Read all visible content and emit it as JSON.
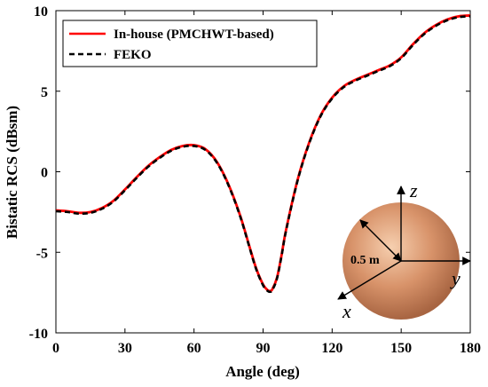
{
  "chart_data": {
    "type": "line",
    "title": "",
    "xlabel": "Angle (deg)",
    "ylabel": "Bistatic RCS (dBsm)",
    "xlim": [
      0,
      180
    ],
    "ylim": [
      -10,
      10
    ],
    "xticks": [
      0,
      30,
      60,
      90,
      120,
      150,
      180
    ],
    "yticks": [
      -10,
      -5,
      0,
      5,
      10
    ],
    "xtick_labels": [
      "0",
      "30",
      "60",
      "90",
      "120",
      "150",
      "180"
    ],
    "ytick_labels": [
      "-10",
      "-5",
      "0",
      "5",
      "10"
    ],
    "grid": false,
    "legend_position": "top-left",
    "series": [
      {
        "name": "In-house (PMCHWT-based)",
        "color": "#ff0000",
        "style": "solid",
        "x": [
          0,
          5,
          10,
          15,
          20,
          25,
          30,
          35,
          40,
          45,
          50,
          55,
          60,
          65,
          70,
          75,
          80,
          84,
          87,
          90,
          92,
          93,
          94,
          96,
          98,
          100,
          105,
          110,
          115,
          120,
          125,
          130,
          135,
          140,
          145,
          150,
          155,
          160,
          165,
          170,
          175,
          180
        ],
        "values": [
          -2.4,
          -2.45,
          -2.55,
          -2.5,
          -2.25,
          -1.8,
          -1.1,
          -0.35,
          0.35,
          0.9,
          1.35,
          1.6,
          1.65,
          1.4,
          0.6,
          -0.8,
          -2.7,
          -4.6,
          -6.0,
          -7.0,
          -7.35,
          -7.4,
          -7.3,
          -6.6,
          -5.2,
          -3.6,
          -0.5,
          1.8,
          3.5,
          4.6,
          5.3,
          5.7,
          6.0,
          6.3,
          6.6,
          7.1,
          7.9,
          8.6,
          9.1,
          9.45,
          9.65,
          9.7
        ]
      },
      {
        "name": "FEKO",
        "color": "#000000",
        "style": "dashed",
        "x": [
          0,
          5,
          10,
          15,
          20,
          25,
          30,
          35,
          40,
          45,
          50,
          55,
          60,
          65,
          70,
          75,
          80,
          84,
          87,
          90,
          92,
          93,
          94,
          96,
          98,
          100,
          105,
          110,
          115,
          120,
          125,
          130,
          135,
          140,
          145,
          150,
          155,
          160,
          165,
          170,
          175,
          180
        ],
        "values": [
          -2.45,
          -2.5,
          -2.6,
          -2.55,
          -2.3,
          -1.85,
          -1.15,
          -0.4,
          0.3,
          0.85,
          1.3,
          1.55,
          1.6,
          1.35,
          0.55,
          -0.85,
          -2.75,
          -4.65,
          -6.05,
          -7.05,
          -7.4,
          -7.45,
          -7.35,
          -6.65,
          -5.25,
          -3.65,
          -0.55,
          1.75,
          3.45,
          4.55,
          5.25,
          5.65,
          5.95,
          6.25,
          6.55,
          7.05,
          7.85,
          8.55,
          9.05,
          9.4,
          9.6,
          9.65
        ]
      }
    ],
    "inset": {
      "radius_label": "0.5 m",
      "axis_x_label": "x",
      "axis_y_label": "y",
      "axis_z_label": "z",
      "sphere_color": "#d8936a"
    }
  }
}
